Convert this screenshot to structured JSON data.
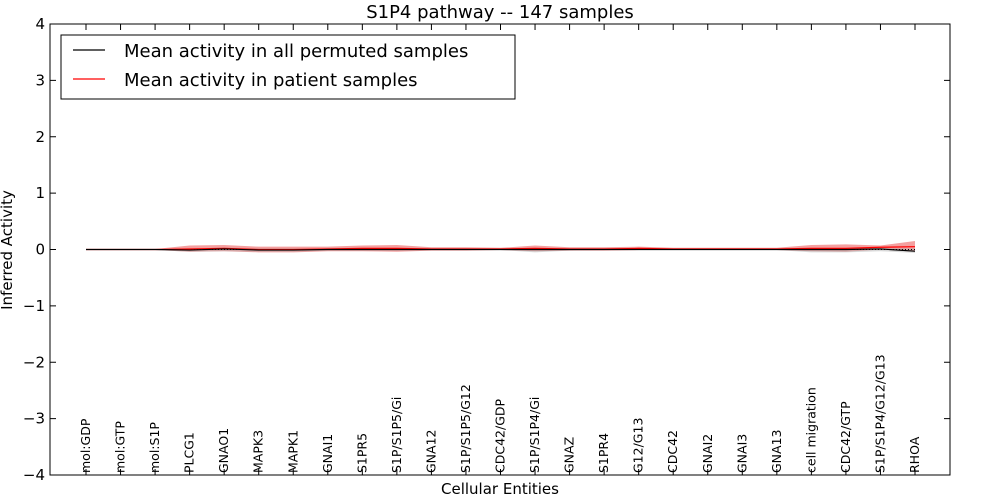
{
  "chart_data": {
    "type": "line",
    "title": "S1P4 pathway -- 147 samples",
    "xlabel": "Cellular Entities",
    "ylabel": "Inferred Activity",
    "ylim": [
      -4,
      4
    ],
    "yticks": [
      4,
      3,
      2,
      1,
      0,
      -1,
      -2,
      -3,
      -4
    ],
    "ytick_labels": [
      "4",
      "3",
      "2",
      "1",
      "0",
      "−1",
      "−2",
      "−3",
      "−4"
    ],
    "categories": [
      "mol:GDP",
      "mol:GTP",
      "mol:S1P",
      "PLCG1",
      "GNAO1",
      "MAPK3",
      "MAPK1",
      "GNAI1",
      "S1PR5",
      "S1P/S1P5/Gi",
      "GNA12",
      "S1P/S1P5/G12",
      "CDC42/GDP",
      "S1P/S1P4/Gi",
      "GNAZ",
      "S1PR4",
      "G12/G13",
      "CDC42",
      "GNAI2",
      "GNAI3",
      "GNA13",
      "cell migration",
      "CDC42/GTP",
      "S1P/S1P4/G12/G13",
      "RHOA"
    ],
    "legend": {
      "position": "top-left",
      "entries": [
        {
          "label": "Mean activity in all permuted samples",
          "color": "#000000"
        },
        {
          "label": "Mean activity in patient samples",
          "color": "#ff0000"
        }
      ]
    },
    "series": [
      {
        "name": "Mean activity in all permuted samples",
        "color": "#000000",
        "values": [
          0,
          0,
          0,
          -0.01,
          0.01,
          -0.01,
          -0.01,
          0,
          0,
          0,
          0,
          0,
          0,
          0,
          0,
          0,
          0,
          0,
          0,
          0,
          0,
          0,
          0,
          0.01,
          -0.03
        ],
        "band_upper": [
          0.01,
          0.01,
          0.01,
          0.02,
          0.03,
          0.02,
          0.02,
          0.01,
          0.01,
          0.01,
          0.01,
          0.01,
          0.01,
          0.02,
          0.01,
          0.01,
          0.01,
          0.01,
          0.01,
          0.01,
          0.01,
          0.02,
          0.02,
          0.03,
          0.02
        ],
        "band_lower": [
          -0.01,
          -0.01,
          -0.01,
          -0.04,
          -0.03,
          -0.04,
          -0.04,
          -0.02,
          -0.02,
          -0.02,
          -0.01,
          -0.01,
          -0.01,
          -0.05,
          -0.02,
          -0.01,
          -0.01,
          -0.01,
          -0.01,
          -0.01,
          -0.01,
          -0.05,
          -0.05,
          -0.03,
          -0.06
        ],
        "band_color": "#aaaaaa"
      },
      {
        "name": "Mean activity in patient samples",
        "color": "#ff0000",
        "values": [
          0,
          0,
          0,
          0.01,
          0.02,
          0,
          0,
          0.01,
          0.02,
          0.02,
          0.01,
          0.01,
          0.01,
          0.02,
          0.01,
          0.01,
          0.02,
          0.01,
          0.01,
          0.01,
          0.01,
          0.02,
          0.02,
          0.04,
          0.05
        ],
        "band_upper": [
          0.01,
          0.01,
          0.01,
          0.07,
          0.08,
          0.05,
          0.05,
          0.05,
          0.07,
          0.08,
          0.04,
          0.04,
          0.03,
          0.07,
          0.04,
          0.04,
          0.05,
          0.03,
          0.03,
          0.03,
          0.03,
          0.08,
          0.09,
          0.07,
          0.15
        ],
        "band_lower": [
          -0.01,
          -0.01,
          -0.01,
          -0.04,
          -0.03,
          -0.05,
          -0.05,
          -0.03,
          -0.03,
          -0.04,
          -0.02,
          -0.02,
          -0.01,
          -0.03,
          -0.02,
          -0.02,
          -0.01,
          -0.01,
          -0.01,
          -0.01,
          -0.01,
          -0.03,
          -0.04,
          0,
          -0.04
        ],
        "band_color": "#f08080"
      }
    ],
    "zero_line": {
      "y": 0,
      "style": "dotted"
    },
    "grid": false
  }
}
